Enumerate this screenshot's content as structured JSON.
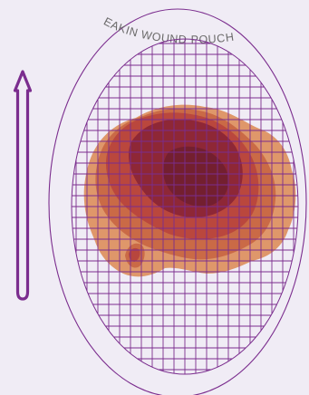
{
  "pouch": {
    "brand_text": "EAKIN WOUND POUCH"
  },
  "colors": {
    "background": "#f0ecf5",
    "outline": "#7b2d8e",
    "grid": "#7b2d8e",
    "wound_outer": "#dd8f5d",
    "wound_mid": "#c86745",
    "wound_inner": "#b8463d",
    "wound_core": "#8a2535",
    "wound_dark": "#6e1f2e"
  },
  "icons": {
    "direction_indicator": "up-arrow-icon"
  }
}
